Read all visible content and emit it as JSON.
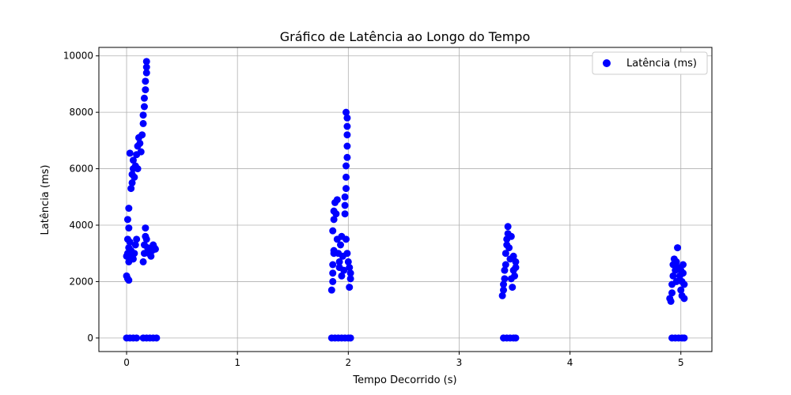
{
  "chart_data": {
    "type": "scatter",
    "title": "Gráfico de Latência ao Longo do Tempo",
    "xlabel": "Tempo Decorrido (s)",
    "ylabel": "Latência (ms)",
    "xlim": [
      -0.25,
      5.28
    ],
    "ylim": [
      -480,
      10300
    ],
    "xticks": [
      0,
      1,
      2,
      3,
      4,
      5
    ],
    "yticks": [
      0,
      2000,
      4000,
      6000,
      8000,
      10000
    ],
    "grid": true,
    "legend_position": "top-right",
    "marker_color": "#0000ff",
    "series": [
      {
        "name": "Latência (ms)",
        "points": [
          [
            0.0,
            2200
          ],
          [
            0.01,
            2100
          ],
          [
            0.02,
            2050
          ],
          [
            0.0,
            2900
          ],
          [
            0.01,
            3000
          ],
          [
            0.02,
            3200
          ],
          [
            0.01,
            3500
          ],
          [
            0.02,
            3900
          ],
          [
            0.01,
            4200
          ],
          [
            0.02,
            4600
          ],
          [
            0.02,
            2700
          ],
          [
            0.03,
            3400
          ],
          [
            0.04,
            3100
          ],
          [
            0.05,
            2900
          ],
          [
            0.06,
            2800
          ],
          [
            0.07,
            3000
          ],
          [
            0.08,
            3300
          ],
          [
            0.09,
            3500
          ],
          [
            0.04,
            5300
          ],
          [
            0.05,
            5500
          ],
          [
            0.05,
            5800
          ],
          [
            0.06,
            6000
          ],
          [
            0.06,
            6300
          ],
          [
            0.03,
            6550
          ],
          [
            0.07,
            5700
          ],
          [
            0.08,
            6100
          ],
          [
            0.09,
            6500
          ],
          [
            0.1,
            6800
          ],
          [
            0.1,
            6000
          ],
          [
            0.11,
            7100
          ],
          [
            0.12,
            6900
          ],
          [
            0.13,
            6600
          ],
          [
            0.14,
            7200
          ],
          [
            0.15,
            7600
          ],
          [
            0.15,
            7900
          ],
          [
            0.16,
            8200
          ],
          [
            0.16,
            8500
          ],
          [
            0.17,
            8800
          ],
          [
            0.17,
            9100
          ],
          [
            0.18,
            9400
          ],
          [
            0.18,
            9600
          ],
          [
            0.18,
            9800
          ],
          [
            0.15,
            2700
          ],
          [
            0.16,
            3000
          ],
          [
            0.16,
            3300
          ],
          [
            0.17,
            3600
          ],
          [
            0.17,
            3900
          ],
          [
            0.18,
            3500
          ],
          [
            0.19,
            3200
          ],
          [
            0.2,
            3000
          ],
          [
            0.22,
            2900
          ],
          [
            0.23,
            3100
          ],
          [
            0.24,
            3300
          ],
          [
            0.25,
            3200
          ],
          [
            0.26,
            3150
          ],
          [
            0.0,
            0
          ],
          [
            0.03,
            0
          ],
          [
            0.06,
            0
          ],
          [
            0.09,
            0
          ],
          [
            0.15,
            0
          ],
          [
            0.18,
            0
          ],
          [
            0.21,
            0
          ],
          [
            0.24,
            0
          ],
          [
            0.27,
            0
          ],
          [
            1.85,
            1700
          ],
          [
            1.86,
            2000
          ],
          [
            1.86,
            2300
          ],
          [
            1.86,
            2600
          ],
          [
            1.87,
            3000
          ],
          [
            1.87,
            3100
          ],
          [
            1.86,
            3800
          ],
          [
            1.87,
            4200
          ],
          [
            1.87,
            4500
          ],
          [
            1.88,
            4800
          ],
          [
            1.89,
            4400
          ],
          [
            1.9,
            4900
          ],
          [
            1.9,
            3500
          ],
          [
            1.91,
            3000
          ],
          [
            1.92,
            2700
          ],
          [
            1.92,
            2500
          ],
          [
            1.93,
            3300
          ],
          [
            1.94,
            3600
          ],
          [
            1.94,
            2200
          ],
          [
            1.95,
            2900
          ],
          [
            1.96,
            2400
          ],
          [
            1.97,
            4700
          ],
          [
            1.97,
            4400
          ],
          [
            1.97,
            5000
          ],
          [
            1.98,
            5300
          ],
          [
            1.98,
            5700
          ],
          [
            1.98,
            6100
          ],
          [
            1.99,
            6400
          ],
          [
            1.99,
            6800
          ],
          [
            1.99,
            7200
          ],
          [
            1.99,
            7500
          ],
          [
            1.99,
            7800
          ],
          [
            1.98,
            8000
          ],
          [
            1.98,
            3500
          ],
          [
            1.99,
            3000
          ],
          [
            2.0,
            2700
          ],
          [
            2.01,
            2500
          ],
          [
            2.02,
            2300
          ],
          [
            2.02,
            2100
          ],
          [
            2.01,
            1800
          ],
          [
            1.85,
            0
          ],
          [
            1.88,
            0
          ],
          [
            1.91,
            0
          ],
          [
            1.94,
            0
          ],
          [
            1.97,
            0
          ],
          [
            2.0,
            0
          ],
          [
            2.02,
            0
          ],
          [
            3.39,
            1500
          ],
          [
            3.4,
            1700
          ],
          [
            3.4,
            1900
          ],
          [
            3.41,
            2100
          ],
          [
            3.41,
            2400
          ],
          [
            3.42,
            2600
          ],
          [
            3.42,
            3000
          ],
          [
            3.43,
            3300
          ],
          [
            3.43,
            3500
          ],
          [
            3.44,
            3700
          ],
          [
            3.44,
            3950
          ],
          [
            3.45,
            3200
          ],
          [
            3.46,
            2800
          ],
          [
            3.47,
            3600
          ],
          [
            3.47,
            2100
          ],
          [
            3.48,
            1800
          ],
          [
            3.49,
            2400
          ],
          [
            3.49,
            2900
          ],
          [
            3.5,
            2200
          ],
          [
            3.51,
            2700
          ],
          [
            3.51,
            2500
          ],
          [
            3.4,
            0
          ],
          [
            3.43,
            0
          ],
          [
            3.46,
            0
          ],
          [
            3.49,
            0
          ],
          [
            3.51,
            0
          ],
          [
            4.9,
            1400
          ],
          [
            4.91,
            1300
          ],
          [
            4.92,
            1600
          ],
          [
            4.92,
            1900
          ],
          [
            4.93,
            2200
          ],
          [
            4.93,
            2600
          ],
          [
            4.94,
            2800
          ],
          [
            4.95,
            2400
          ],
          [
            4.96,
            2000
          ],
          [
            4.96,
            2700
          ],
          [
            4.97,
            3200
          ],
          [
            4.98,
            2500
          ],
          [
            4.99,
            2200
          ],
          [
            5.0,
            1700
          ],
          [
            5.0,
            2400
          ],
          [
            5.01,
            1500
          ],
          [
            5.01,
            2000
          ],
          [
            5.02,
            2600
          ],
          [
            5.02,
            2300
          ],
          [
            5.03,
            1900
          ],
          [
            5.03,
            1400
          ],
          [
            4.92,
            0
          ],
          [
            4.95,
            0
          ],
          [
            4.98,
            0
          ],
          [
            5.01,
            0
          ],
          [
            5.03,
            0
          ]
        ]
      }
    ]
  }
}
